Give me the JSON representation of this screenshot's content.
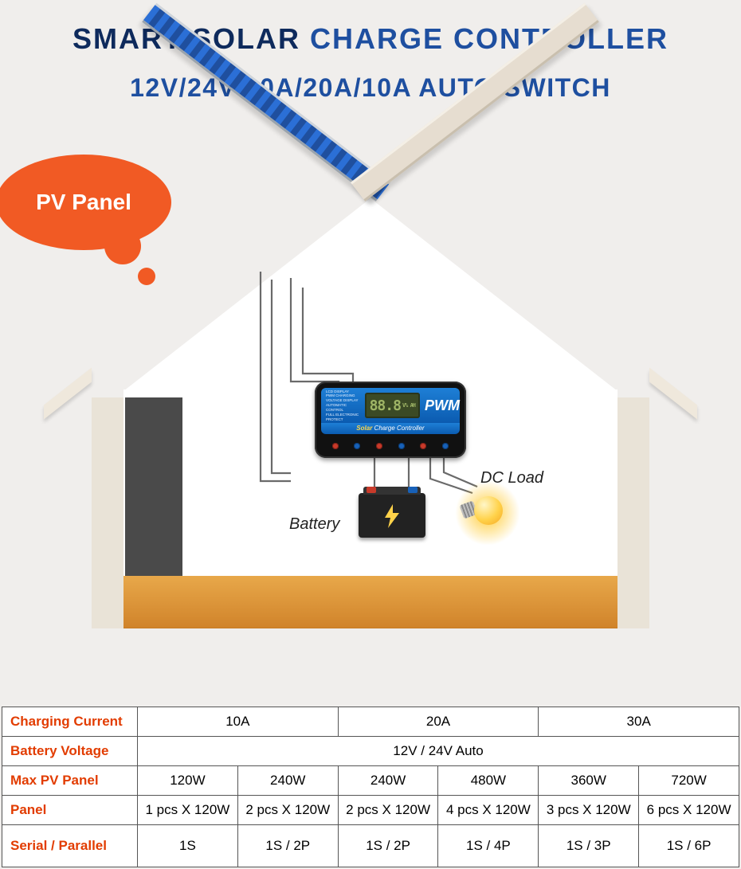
{
  "title_line1_a": "SMART SOLAR ",
  "title_line1_b": "CHARGE CONTROLLER",
  "title_line2": "12V/24V 30A/20A/10A AUTO SWITCH",
  "bubble_label": "PV Panel",
  "scene": {
    "battery_label": "Battery",
    "dc_label": "DC Load",
    "controller": {
      "features": [
        "LCD DISPLAY",
        "PWM CHARGING",
        "VOLTAGE DISPLAY",
        "AUTOMATIC CONTROL",
        "FULL ELECTRONIC",
        "PROTECT"
      ],
      "lcd_value": "88.8",
      "lcd_units": "V% AH",
      "pwm": "PWM",
      "sub_a": "Solar",
      "sub_b": " Charge Controller"
    }
  },
  "colors": {
    "bg": "#f0eeec",
    "title_dark": "#0e2a5c",
    "title_blue": "#1e4fa0",
    "bubble": "#f15a24",
    "accent_orange": "#e23c00",
    "panel_blue": "#2b6fd6",
    "floor": "#e8a84a"
  },
  "table": {
    "rows": [
      {
        "head": "Charging Current",
        "cells": [
          "10A",
          "20A",
          "30A"
        ],
        "span": 2
      },
      {
        "head": "Battery Voltage",
        "cells": [
          "12V / 24V Auto"
        ],
        "span": 6
      },
      {
        "head": "Max PV Panel",
        "cells": [
          "120W",
          "240W",
          "240W",
          "480W",
          "360W",
          "720W"
        ],
        "span": 1
      },
      {
        "head": "Panel",
        "cells": [
          "1 pcs X 120W",
          "2 pcs X 120W",
          "2 pcs X 120W",
          "4 pcs X 120W",
          "3 pcs X 120W",
          "6 pcs X 120W"
        ],
        "span": 1
      },
      {
        "head": "Serial / Parallel",
        "cells": [
          "1S",
          "1S / 2P",
          "1S / 2P",
          "1S / 4P",
          "1S / 3P",
          "1S / 6P"
        ],
        "span": 1,
        "tall": true
      }
    ]
  }
}
